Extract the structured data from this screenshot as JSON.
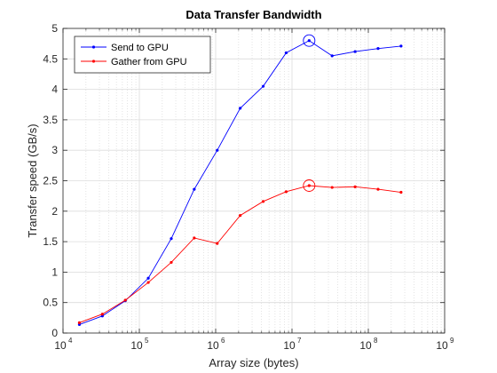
{
  "chart_data": {
    "type": "line",
    "title": "Data Transfer Bandwidth",
    "xlabel": "Array size (bytes)",
    "ylabel": "Transfer speed (GB/s)",
    "xscale": "log",
    "xlim": [
      10000,
      1000000000
    ],
    "ylim": [
      0,
      5
    ],
    "yticks": [
      0,
      0.5,
      1,
      1.5,
      2,
      2.5,
      3,
      3.5,
      4,
      4.5,
      5
    ],
    "ytick_labels": [
      "0",
      "0.5",
      "1",
      "1.5",
      "2",
      "2.5",
      "3",
      "3.5",
      "4",
      "4.5",
      "5"
    ],
    "xticks": [
      {
        "value": 10000,
        "base": "10",
        "exp": "4"
      },
      {
        "value": 100000,
        "base": "10",
        "exp": "5"
      },
      {
        "value": 1000000,
        "base": "10",
        "exp": "6"
      },
      {
        "value": 10000000,
        "base": "10",
        "exp": "7"
      },
      {
        "value": 100000000,
        "base": "10",
        "exp": "8"
      },
      {
        "value": 1000000000,
        "base": "10",
        "exp": "9"
      }
    ],
    "grid": true,
    "minor_grid": true,
    "legend_position": "top-left",
    "x": [
      16384,
      32768,
      65536,
      131072,
      262144,
      524288,
      1048576,
      2097152,
      4194304,
      8388608,
      16777216,
      33554432,
      67108864,
      134217728,
      268435456
    ],
    "series": [
      {
        "name": "Send to GPU",
        "color": "#0000ff",
        "values": [
          0.14,
          0.28,
          0.53,
          0.9,
          1.55,
          2.36,
          3.0,
          3.69,
          4.05,
          4.6,
          4.8,
          4.55,
          4.62,
          4.67,
          4.71
        ]
      },
      {
        "name": "Gather from GPU",
        "color": "#ff0000",
        "values": [
          0.17,
          0.31,
          0.54,
          0.83,
          1.16,
          1.56,
          1.47,
          1.93,
          2.16,
          2.32,
          2.42,
          2.39,
          2.4,
          2.36,
          2.31
        ]
      }
    ],
    "highlights": [
      {
        "series": 0,
        "x": 16777216,
        "y": 4.8
      },
      {
        "series": 1,
        "x": 16777216,
        "y": 2.42
      }
    ]
  }
}
